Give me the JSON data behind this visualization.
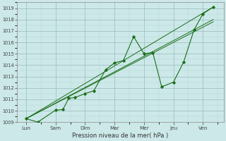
{
  "background_color": "#cce8e8",
  "grid_color_minor": "#b8d8d8",
  "grid_color_major": "#99bbbb",
  "line_color": "#1a6e1a",
  "marker_color": "#1a6e1a",
  "xlabel": "Pression niveau de la mer( hPa )",
  "ylim": [
    1009,
    1019.5
  ],
  "yticks": [
    1009,
    1010,
    1011,
    1012,
    1013,
    1014,
    1015,
    1016,
    1017,
    1018,
    1019
  ],
  "x_labels": [
    "Lun",
    "Sam",
    "Dim",
    "Mar",
    "Mer",
    "Jeu",
    "Ven"
  ],
  "x_positions": [
    0,
    1,
    2,
    3,
    4,
    5,
    6
  ],
  "main_x": [
    0,
    0.4,
    1.0,
    1.25,
    1.45,
    1.65,
    2.0,
    2.3,
    2.7,
    3.0,
    3.3,
    3.65,
    4.0,
    4.3,
    4.6,
    5.0,
    5.35,
    5.7,
    6.0,
    6.35
  ],
  "main_y": [
    1009.3,
    1009.0,
    1010.05,
    1010.1,
    1011.1,
    1011.15,
    1011.5,
    1011.75,
    1013.6,
    1014.2,
    1014.4,
    1016.5,
    1015.0,
    1015.1,
    1012.1,
    1012.5,
    1014.3,
    1017.1,
    1018.5,
    1019.1
  ],
  "trend_lines": [
    {
      "x": [
        0,
        6.35
      ],
      "y": [
        1009.3,
        1018.0
      ]
    },
    {
      "x": [
        0,
        6.35
      ],
      "y": [
        1009.3,
        1019.1
      ]
    },
    {
      "x": [
        0,
        6.35
      ],
      "y": [
        1009.3,
        1017.8
      ]
    }
  ],
  "figsize": [
    3.2,
    2.0
  ],
  "dpi": 100
}
